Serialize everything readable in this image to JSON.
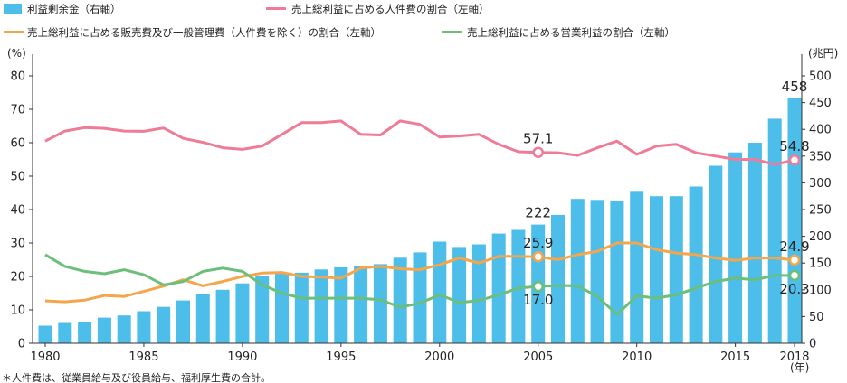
{
  "legend": [
    {
      "label": "利益剰余金（右軸）",
      "color": "#4dbdea",
      "kind": "box"
    },
    {
      "label": "売上総利益に占める人件費の割合（左軸）",
      "color": "#ef7b96",
      "kind": "line"
    },
    {
      "label": "売上総利益に占める販売費及び一般管理費（人件費を除く）の割合（左軸）",
      "color": "#f5a54a",
      "kind": "line"
    },
    {
      "label": "売上総利益に占める営業利益の割合（左軸）",
      "color": "#6cbf7a",
      "kind": "line"
    }
  ],
  "left_unit": "(%)",
  "right_unit": "(兆円)",
  "x_unit": "(年)",
  "note": "＊人件費は、従業員給与及び役員給与、福利厚生費の合計。",
  "x_tick_labels": [
    "1980",
    "1985",
    "1990",
    "1995",
    "2000",
    "2005",
    "2010",
    "2015",
    "2018"
  ],
  "left_tick_labels": [
    "0",
    "10",
    "20",
    "30",
    "40",
    "50",
    "60",
    "70",
    "80"
  ],
  "right_tick_labels": [
    "0",
    "50",
    "100",
    "150",
    "200",
    "250",
    "300",
    "350",
    "400",
    "450",
    "500"
  ],
  "annotations": [
    {
      "text": "57.1",
      "series": 1,
      "year": 2005
    },
    {
      "text": "54.8",
      "series": 1,
      "year": 2018
    },
    {
      "text": "222",
      "series": 0,
      "year": 2005
    },
    {
      "text": "458",
      "series": 0,
      "year": 2018
    },
    {
      "text": "25.9",
      "series": 2,
      "year": 2005
    },
    {
      "text": "24.9",
      "series": 2,
      "year": 2018
    },
    {
      "text": "17.0",
      "series": 3,
      "year": 2005
    },
    {
      "text": "20.3",
      "series": 3,
      "year": 2018
    }
  ],
  "chart_data": {
    "type": "bar",
    "categories": [
      1980,
      1981,
      1982,
      1983,
      1984,
      1985,
      1986,
      1987,
      1988,
      1989,
      1990,
      1991,
      1992,
      1993,
      1994,
      1995,
      1996,
      1997,
      1998,
      1999,
      2000,
      2001,
      2002,
      2003,
      2004,
      2005,
      2006,
      2007,
      2008,
      2009,
      2010,
      2011,
      2012,
      2013,
      2014,
      2015,
      2016,
      2017,
      2018
    ],
    "x_ticks": [
      1980,
      1985,
      1990,
      1995,
      2000,
      2005,
      2010,
      2015,
      2018
    ],
    "left_ylim": [
      0,
      80
    ],
    "right_ylim": [
      0,
      500
    ],
    "grid": false,
    "legend_position": "top",
    "series": [
      {
        "name": "利益剰余金（右軸）",
        "axis": "right",
        "type": "bar",
        "color": "#4dbdea",
        "values": [
          33,
          38,
          40,
          48,
          52,
          60,
          68,
          80,
          92,
          100,
          112,
          125,
          130,
          132,
          138,
          142,
          145,
          148,
          160,
          170,
          190,
          180,
          185,
          205,
          212,
          222,
          240,
          270,
          268,
          267,
          285,
          275,
          275,
          293,
          332,
          357,
          375,
          420,
          458
        ]
      },
      {
        "name": "売上総利益に占める人件費の割合（左軸）",
        "axis": "left",
        "type": "line",
        "color": "#ef7b96",
        "values": [
          60.5,
          63.5,
          64.5,
          64.3,
          63.5,
          63.4,
          64.4,
          61.3,
          60.1,
          58.5,
          58.0,
          59.0,
          62.5,
          66.0,
          66.0,
          66.5,
          62.5,
          62.3,
          66.5,
          65.5,
          61.7,
          62.0,
          62.5,
          59.5,
          57.3,
          57.1,
          57.0,
          56.2,
          58.5,
          60.5,
          56.5,
          59.0,
          59.5,
          57.0,
          56.0,
          55.0,
          55.0,
          53.5,
          54.8
        ]
      },
      {
        "name": "売上総利益に占める販売費及び一般管理費（人件費を除く）の割合（左軸）",
        "axis": "left",
        "type": "line",
        "color": "#f5a54a",
        "values": [
          12.7,
          12.4,
          12.9,
          14.3,
          14.0,
          15.5,
          17.1,
          19.0,
          17.2,
          18.5,
          20.0,
          21.0,
          21.2,
          20.0,
          19.8,
          19.5,
          22.5,
          23.0,
          22.3,
          22.0,
          23.5,
          25.5,
          24.0,
          26.0,
          26.0,
          25.9,
          25.0,
          26.5,
          27.5,
          30.0,
          30.0,
          28.0,
          27.0,
          26.5,
          25.5,
          24.8,
          25.5,
          25.5,
          24.9
        ]
      },
      {
        "name": "売上総利益に占める営業利益の割合（左軸）",
        "axis": "left",
        "type": "line",
        "color": "#6cbf7a",
        "values": [
          26.5,
          23.0,
          21.5,
          20.8,
          22.0,
          20.5,
          17.5,
          18.5,
          21.5,
          22.5,
          21.5,
          17.5,
          15.0,
          13.5,
          13.5,
          13.5,
          13.5,
          13.0,
          10.8,
          12.0,
          14.5,
          12.2,
          12.8,
          14.5,
          16.5,
          17.0,
          17.3,
          17.2,
          14.0,
          8.6,
          14.2,
          13.5,
          14.5,
          16.5,
          18.5,
          19.5,
          19.0,
          20.3,
          20.3
        ]
      }
    ]
  }
}
